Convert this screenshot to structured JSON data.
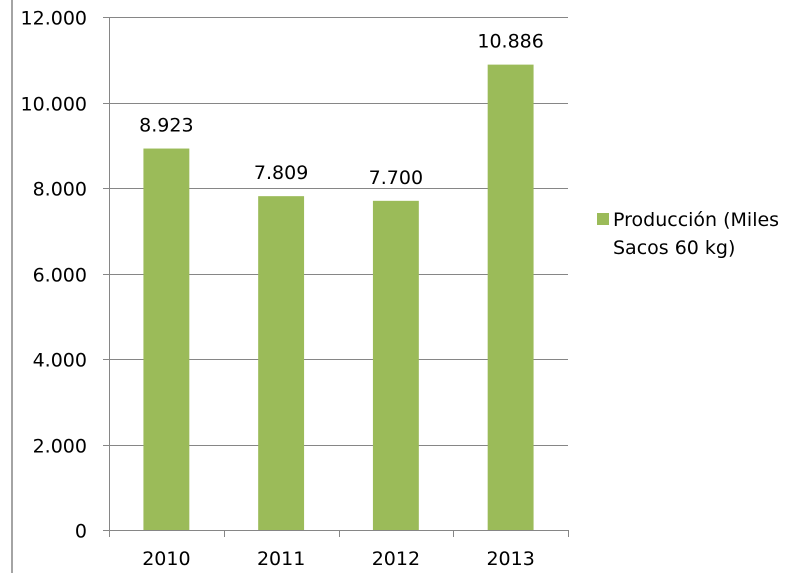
{
  "colors": {
    "bar": "#9bbb59",
    "gridline": "#868686",
    "axis": "#868686",
    "frame": "#868686",
    "text": "#000000"
  },
  "chart_data": {
    "type": "bar",
    "categories": [
      "2010",
      "2011",
      "2012",
      "2013"
    ],
    "series": [
      {
        "name": "Producción (Miles\nSacos 60 kg)",
        "values": [
          8923,
          7809,
          7700,
          10886
        ],
        "value_labels": [
          "8.923",
          "7.809",
          "7.700",
          "10.886"
        ]
      }
    ],
    "y_ticks": [
      0,
      2000,
      4000,
      6000,
      8000,
      10000,
      12000
    ],
    "y_tick_labels": [
      "0",
      "2.000",
      "4.000",
      "6.000",
      "8.000",
      "10.000",
      "12.000"
    ],
    "ylim": [
      0,
      12000
    ],
    "title": "",
    "xlabel": "",
    "ylabel": "",
    "grid": true,
    "legend_position": "right"
  }
}
